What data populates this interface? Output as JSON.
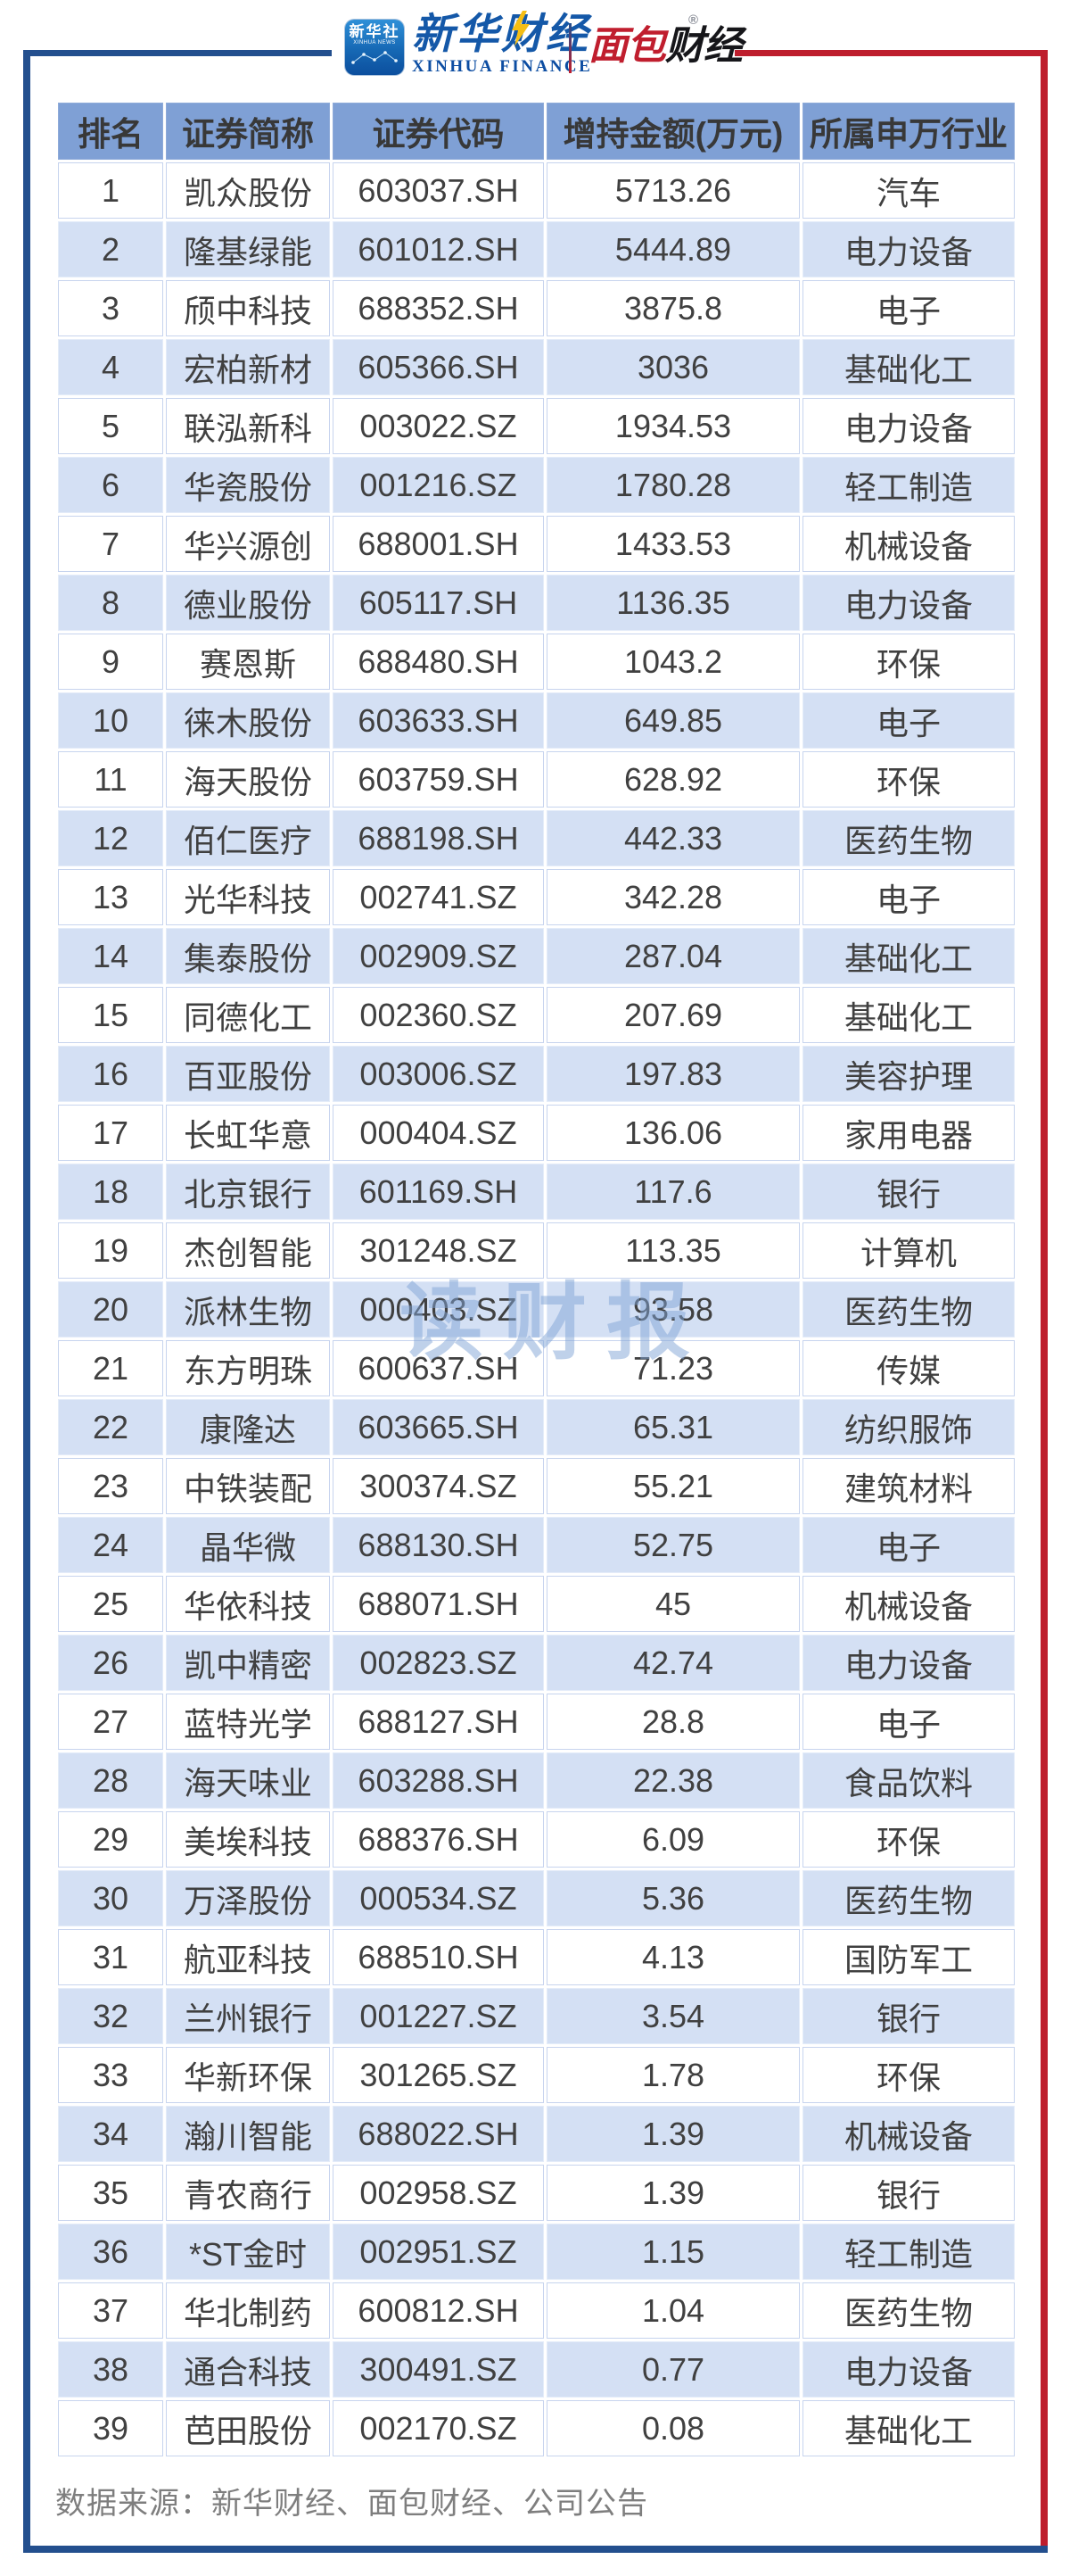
{
  "brand": {
    "xinhua_icon": {
      "line1": "新华社",
      "line2": "XINHUA NEWS"
    },
    "xinhua_finance": {
      "cn": "新华财经",
      "en": "XINHUA FINANCE"
    },
    "mianbao": {
      "cn_red": "面包",
      "cn_dark": "财经",
      "reg": "®"
    }
  },
  "watermark": "读财报",
  "chart_data": {
    "type": "table",
    "columns": [
      "排名",
      "证券简称",
      "证券代码",
      "增持金额(万元)",
      "所属申万行业"
    ],
    "rows": [
      [
        "1",
        "凯众股份",
        "603037.SH",
        "5713.26",
        "汽车"
      ],
      [
        "2",
        "隆基绿能",
        "601012.SH",
        "5444.89",
        "电力设备"
      ],
      [
        "3",
        "颀中科技",
        "688352.SH",
        "3875.8",
        "电子"
      ],
      [
        "4",
        "宏柏新材",
        "605366.SH",
        "3036",
        "基础化工"
      ],
      [
        "5",
        "联泓新科",
        "003022.SZ",
        "1934.53",
        "电力设备"
      ],
      [
        "6",
        "华瓷股份",
        "001216.SZ",
        "1780.28",
        "轻工制造"
      ],
      [
        "7",
        "华兴源创",
        "688001.SH",
        "1433.53",
        "机械设备"
      ],
      [
        "8",
        "德业股份",
        "605117.SH",
        "1136.35",
        "电力设备"
      ],
      [
        "9",
        "赛恩斯",
        "688480.SH",
        "1043.2",
        "环保"
      ],
      [
        "10",
        "徕木股份",
        "603633.SH",
        "649.85",
        "电子"
      ],
      [
        "11",
        "海天股份",
        "603759.SH",
        "628.92",
        "环保"
      ],
      [
        "12",
        "佰仁医疗",
        "688198.SH",
        "442.33",
        "医药生物"
      ],
      [
        "13",
        "光华科技",
        "002741.SZ",
        "342.28",
        "电子"
      ],
      [
        "14",
        "集泰股份",
        "002909.SZ",
        "287.04",
        "基础化工"
      ],
      [
        "15",
        "同德化工",
        "002360.SZ",
        "207.69",
        "基础化工"
      ],
      [
        "16",
        "百亚股份",
        "003006.SZ",
        "197.83",
        "美容护理"
      ],
      [
        "17",
        "长虹华意",
        "000404.SZ",
        "136.06",
        "家用电器"
      ],
      [
        "18",
        "北京银行",
        "601169.SH",
        "117.6",
        "银行"
      ],
      [
        "19",
        "杰创智能",
        "301248.SZ",
        "113.35",
        "计算机"
      ],
      [
        "20",
        "派林生物",
        "000403.SZ",
        "93.58",
        "医药生物"
      ],
      [
        "21",
        "东方明珠",
        "600637.SH",
        "71.23",
        "传媒"
      ],
      [
        "22",
        "康隆达",
        "603665.SH",
        "65.31",
        "纺织服饰"
      ],
      [
        "23",
        "中铁装配",
        "300374.SZ",
        "55.21",
        "建筑材料"
      ],
      [
        "24",
        "晶华微",
        "688130.SH",
        "52.75",
        "电子"
      ],
      [
        "25",
        "华依科技",
        "688071.SH",
        "45",
        "机械设备"
      ],
      [
        "26",
        "凯中精密",
        "002823.SZ",
        "42.74",
        "电力设备"
      ],
      [
        "27",
        "蓝特光学",
        "688127.SH",
        "28.8",
        "电子"
      ],
      [
        "28",
        "海天味业",
        "603288.SH",
        "22.38",
        "食品饮料"
      ],
      [
        "29",
        "美埃科技",
        "688376.SH",
        "6.09",
        "环保"
      ],
      [
        "30",
        "万泽股份",
        "000534.SZ",
        "5.36",
        "医药生物"
      ],
      [
        "31",
        "航亚科技",
        "688510.SH",
        "4.13",
        "国防军工"
      ],
      [
        "32",
        "兰州银行",
        "001227.SZ",
        "3.54",
        "银行"
      ],
      [
        "33",
        "华新环保",
        "301265.SZ",
        "1.78",
        "环保"
      ],
      [
        "34",
        "瀚川智能",
        "688022.SH",
        "1.39",
        "机械设备"
      ],
      [
        "35",
        "青农商行",
        "002958.SZ",
        "1.39",
        "银行"
      ],
      [
        "36",
        "*ST金时",
        "002951.SZ",
        "1.15",
        "轻工制造"
      ],
      [
        "37",
        "华北制药",
        "600812.SH",
        "1.04",
        "医药生物"
      ],
      [
        "38",
        "通合科技",
        "300491.SZ",
        "0.77",
        "电力设备"
      ],
      [
        "39",
        "芭田股份",
        "002170.SZ",
        "0.08",
        "基础化工"
      ]
    ]
  },
  "footer": {
    "source": "数据来源：新华财经、面包财经、公司公告"
  },
  "colors": {
    "frame_blue": "#234f8e",
    "frame_red": "#be1e2d",
    "header_bg": "#7fa0d5",
    "row_alt_bg": "#d4e0f4",
    "xinhua_blue": "#1458a8",
    "mianbao_red": "#c01e2e",
    "bolt_yellow": "#f6be13"
  }
}
